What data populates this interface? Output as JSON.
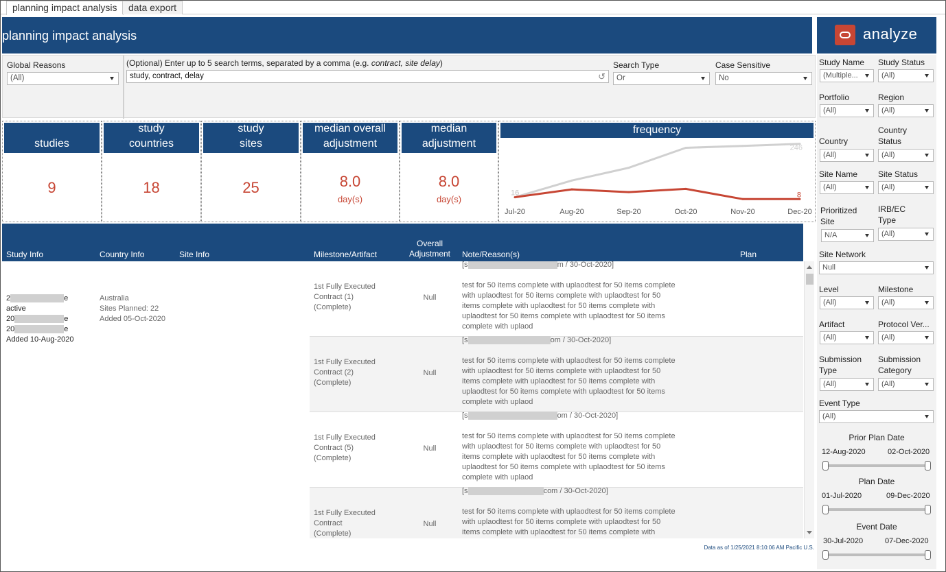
{
  "tabs": [
    {
      "label": "planning impact analysis"
    },
    {
      "label": "data export"
    }
  ],
  "header": {
    "title": "planning impact analysis",
    "logo_text": "analyze"
  },
  "filters": {
    "global_reasons": {
      "label": "Global Reasons",
      "value": "(All)"
    },
    "search_help_prefix": "(Optional) Enter up to 5 search terms, separated by a comma (e.g. ",
    "search_help_example": "contract, site delay",
    "search_help_suffix": ")",
    "search_value": "study, contract, delay",
    "search_type": {
      "label": "Search Type",
      "value": "Or"
    },
    "case_sensitive": {
      "label": "Case Sensitive",
      "value": "No"
    }
  },
  "kpis": {
    "studies": {
      "label": "studies",
      "value": "9"
    },
    "countries": {
      "label1": "study",
      "label2": "countries",
      "value": "18"
    },
    "sites": {
      "label1": "study",
      "label2": "sites",
      "value": "25"
    },
    "median_overall": {
      "label1": "median overall",
      "label2": "adjustment",
      "value": "8.0",
      "unit": "day(s)"
    },
    "median_adj": {
      "label1": "median",
      "label2": "adjustment",
      "value": "8.0",
      "unit": "day(s)"
    }
  },
  "frequency": {
    "title": "frequency",
    "label_start": "16",
    "label_gray_end": "246",
    "label_red_end": "8"
  },
  "chart_data": {
    "type": "line",
    "title": "frequency",
    "categories": [
      "Jul-20",
      "Aug-20",
      "Sep-20",
      "Oct-20",
      "Nov-20",
      "Dec-20"
    ],
    "series": [
      {
        "values": [
          16,
          88,
          143,
          229,
          237,
          246
        ],
        "color": "#d0d0d0"
      },
      {
        "values": [
          16,
          50,
          38,
          52,
          8,
          8
        ],
        "color": "#c74634"
      }
    ],
    "ylim": [
      0,
      260
    ],
    "grid": false,
    "legend": "none"
  },
  "table": {
    "headers": {
      "study": "Study Info",
      "country": "Country Info",
      "site": "Site Info",
      "milestone": "Milestone/Artifact",
      "overall1": "Overall",
      "overall2": "Adjustment",
      "note": "Note/Reason(s)",
      "plan": "Plan"
    },
    "study_info": {
      "l1a": "2",
      "l1b": "e",
      "l2": "active",
      "l3a": "20",
      "l3b": "e",
      "l4a": "20",
      "l4b": "e",
      "l5": "Added 10-Aug-2020"
    },
    "country_info": {
      "country": "Australia",
      "sites_planned": "Sites Planned: 22",
      "added": "Added 05-Oct-2020"
    },
    "rows": [
      {
        "m1": "1st Fully Executed",
        "m2": "Contract (1)",
        "m3": "(Complete)",
        "adj": "Null",
        "note_prefix": "[s",
        "note_suffix": "m / 30-Oct-2020]"
      },
      {
        "m1": "1st Fully Executed",
        "m2": "Contract (2)",
        "m3": "(Complete)",
        "adj": "Null",
        "note_prefix": "[s",
        "note_suffix": "om / 30-Oct-2020]"
      },
      {
        "m1": "1st Fully Executed",
        "m2": "Contract (5)",
        "m3": "(Complete)",
        "adj": "Null",
        "note_prefix": "[s",
        "note_suffix": "om / 30-Oct-2020]"
      },
      {
        "m1": "1st Fully Executed",
        "m2": "Contract",
        "m3": "(Complete)",
        "adj": "Null",
        "note_prefix": "[s",
        "note_suffix": "com / 30-Oct-2020]"
      }
    ],
    "note_lines": [
      "test for 50 items complete with uplaodtest for 50 items complete",
      "with uplaodtest for 50 items complete with uplaodtest for 50",
      "items complete with uplaodtest for 50 items complete with",
      "uplaodtest for 50 items complete with uplaodtest for 50 items",
      "complete with uplaod"
    ]
  },
  "footnote": "Data as of 1/25/2021 8:10:06 AM Pacific U.S.",
  "right_panel": {
    "study_name": {
      "label": "Study Name",
      "value": "(Multiple..."
    },
    "study_status": {
      "label": "Study Status",
      "value": "(All)"
    },
    "portfolio": {
      "label": "Portfolio",
      "value": "(All)"
    },
    "region": {
      "label": "Region",
      "value": "(All)"
    },
    "country": {
      "label": "Country",
      "value": "(All)"
    },
    "country_status": {
      "label1": "Country",
      "label2": "Status",
      "value": "(All)"
    },
    "site_name": {
      "label": "Site Name",
      "value": "(All)"
    },
    "site_status": {
      "label": "Site Status",
      "value": "(All)"
    },
    "prioritized_site": {
      "label1": "Prioritized",
      "label2": "Site",
      "value": "N/A"
    },
    "irb_type": {
      "label1": "IRB/EC",
      "label2": "Type",
      "value": "(All)"
    },
    "site_network": {
      "label": "Site Network",
      "value": "Null"
    },
    "level": {
      "label": "Level",
      "value": "(All)"
    },
    "milestone": {
      "label": "Milestone",
      "value": "(All)"
    },
    "artifact": {
      "label": "Artifact",
      "value": "(All)"
    },
    "protocol_version": {
      "label": "Protocol Ver...",
      "value": "(All)"
    },
    "submission_type": {
      "label1": "Submission",
      "label2": "Type",
      "value": "(All)"
    },
    "submission_category": {
      "label1": "Submission",
      "label2": "Category",
      "value": "(All)"
    },
    "event_type": {
      "label": "Event Type",
      "value": "(All)"
    },
    "prior_plan_date": {
      "label": "Prior Plan Date",
      "start": "12-Aug-2020",
      "end": "02-Oct-2020"
    },
    "plan_date": {
      "label": "Plan Date",
      "start": "01-Jul-2020",
      "end": "09-Dec-2020"
    },
    "event_date": {
      "label": "Event Date",
      "start": "30-Jul-2020",
      "end": "07-Dec-2020"
    }
  }
}
